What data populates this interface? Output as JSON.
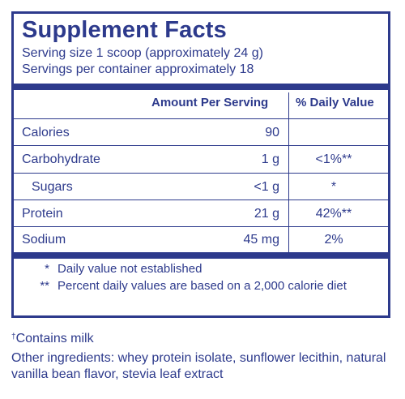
{
  "label": {
    "title": "Supplement Facts",
    "serving_size": "Serving size 1 scoop (approximately 24 g)",
    "servings_per_container": "Servings per container approximately 18",
    "header_amount": "Amount Per Serving",
    "header_daily": "% Daily Value",
    "rows": [
      {
        "name": "Calories",
        "amount": "90",
        "daily": ""
      },
      {
        "name": "Carbohydrate",
        "amount": "1 g",
        "daily": "<1%**"
      },
      {
        "name": "Sugars",
        "amount": "<1 g",
        "daily": "*"
      },
      {
        "name": "Protein",
        "amount": "21 g",
        "daily": "42%**"
      },
      {
        "name": "Sodium",
        "amount": "45 mg",
        "daily": "2%"
      }
    ],
    "footnotes": [
      {
        "mark": "*",
        "text": "Daily value not established"
      },
      {
        "mark": "**",
        "text": "Percent daily values are based on a 2,000 calorie diet"
      }
    ]
  },
  "allergen_mark": "†",
  "allergen_text": "Contains milk",
  "other_ingredients": "Other ingredients: whey protein isolate, sunflower lecithin, natural vanilla bean flavor, stevia leaf extract",
  "colors": {
    "ink": "#2d3a8c",
    "background": "#ffffff"
  }
}
